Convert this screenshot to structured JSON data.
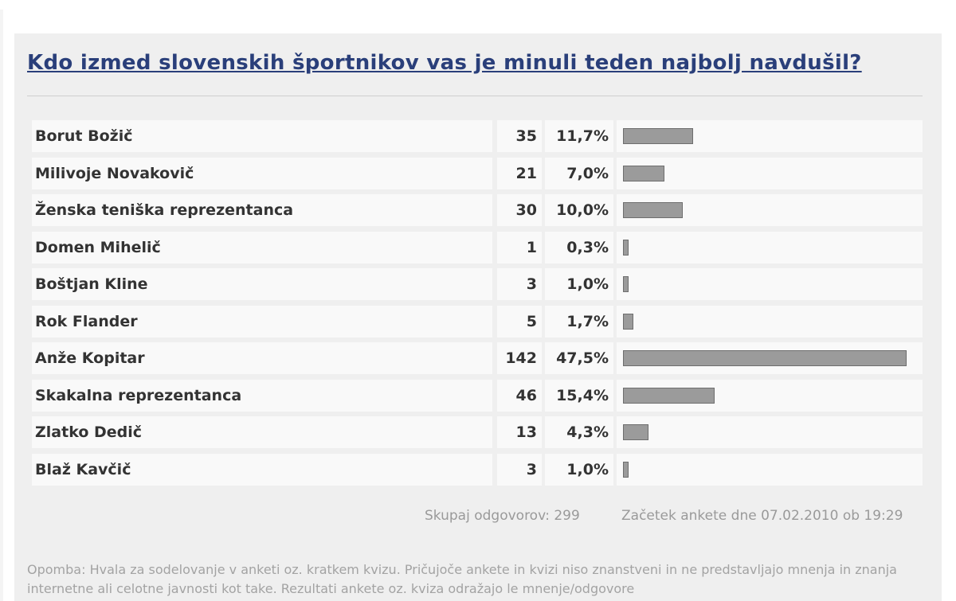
{
  "poll": {
    "title": "Kdo izmed slovenskih športnikov vas je minuli teden najbolj navdušil?",
    "results": [
      {
        "name": "Borut Božič",
        "count": "35",
        "percent": "11,7%",
        "share": 11.7
      },
      {
        "name": "Milivoje Novakovič",
        "count": "21",
        "percent": "7,0%",
        "share": 7.0
      },
      {
        "name": "Ženska teniška reprezentanca",
        "count": "30",
        "percent": "10,0%",
        "share": 10.0
      },
      {
        "name": "Domen Mihelič",
        "count": "1",
        "percent": "0,3%",
        "share": 0.3
      },
      {
        "name": "Boštjan Kline",
        "count": "3",
        "percent": "1,0%",
        "share": 1.0
      },
      {
        "name": "Rok Flander",
        "count": "5",
        "percent": "1,7%",
        "share": 1.7
      },
      {
        "name": "Anže Kopitar",
        "count": "142",
        "percent": "47,5%",
        "share": 47.5
      },
      {
        "name": "Skakalna reprezentanca",
        "count": "46",
        "percent": "15,4%",
        "share": 15.4
      },
      {
        "name": "Zlatko Dedič",
        "count": "13",
        "percent": "4,3%",
        "share": 4.3
      },
      {
        "name": "Blaž Kavčič",
        "count": "3",
        "percent": "1,0%",
        "share": 1.0
      }
    ],
    "total_label": "Skupaj odgovorov: 299",
    "start_label": "Začetek ankete dne 07.02.2010 ob 19:29",
    "note": "Opomba: Hvala za sodelovanje v anketi oz. kratkem kvizu. Pričujoče ankete in kvizi niso znanstveni in ne predstavljajo mnenja in znanja internetne ali celotne javnosti kot take. Rezultati ankete oz. kviza odražajo le mnenje/odgovore"
  },
  "colors": {
    "title": "#2a3f7a",
    "bar": "#9b9b9b",
    "panel": "#efefef"
  }
}
